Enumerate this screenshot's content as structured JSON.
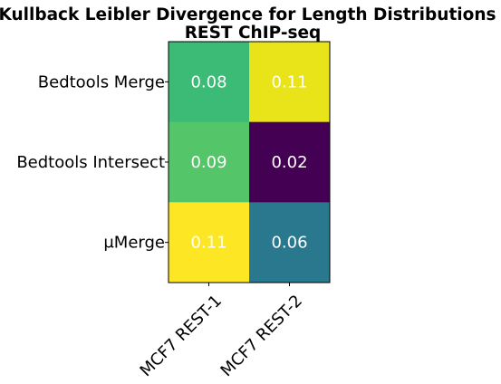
{
  "chart_data": {
    "type": "heatmap",
    "title": "Kullback Leibler Divergence for Length Distributions",
    "subtitle": "REST ChIP-seq",
    "x_categories": [
      "MCF7 REST-1",
      "MCF7 REST-2"
    ],
    "y_categories": [
      "Bedtools Merge",
      "Bedtools Intersect",
      "μMerge"
    ],
    "values": [
      [
        0.08,
        0.11
      ],
      [
        0.09,
        0.02
      ],
      [
        0.11,
        0.06
      ]
    ],
    "cell_labels": [
      [
        "0.08",
        "0.11"
      ],
      [
        "0.09",
        "0.02"
      ],
      [
        "0.11",
        "0.06"
      ]
    ],
    "cell_colors": [
      [
        "#3bbb75",
        "#e8e419"
      ],
      [
        "#54c568",
        "#440154"
      ],
      [
        "#fde725",
        "#2a788e"
      ]
    ],
    "colormap": "viridis",
    "grid": false,
    "legend": "none"
  }
}
